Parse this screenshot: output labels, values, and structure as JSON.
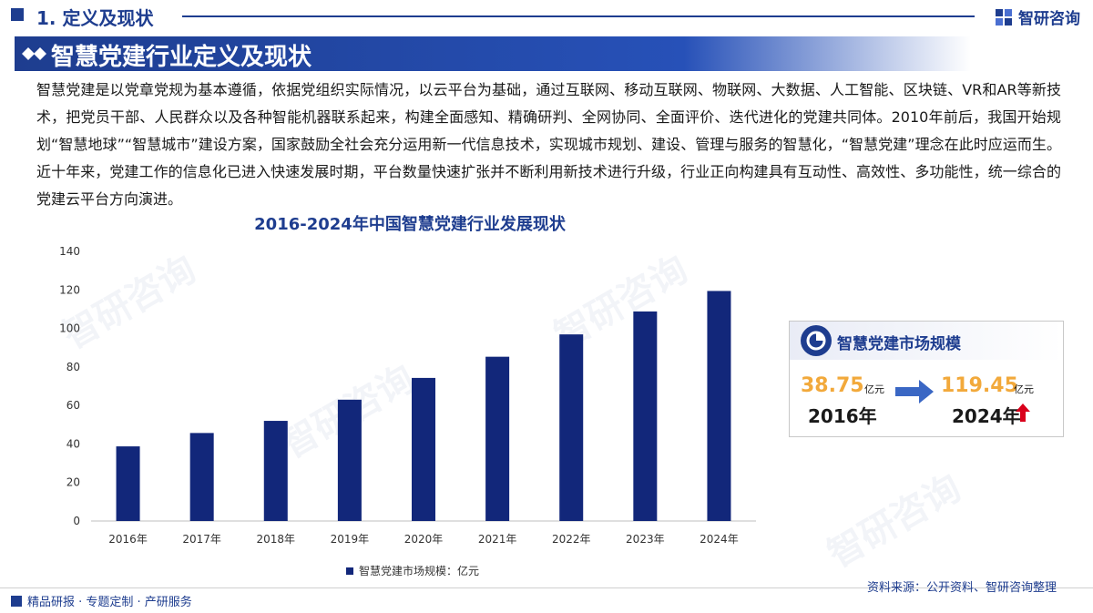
{
  "header": {
    "section_title": "1. 定义及现状",
    "logo_text": "智研咨询",
    "page_title": "智慧党建行业定义及现状"
  },
  "intro": {
    "text": "智慧党建是以党章党规为基本遵循，依据党组织实际情况，以云平台为基础，通过互联网、移动互联网、物联网、大数据、人工智能、区块链、VR和AR等新技术，把党员干部、人民群众以及各种智能机器联系起来，构建全面感知、精确研判、全网协同、全面评价、迭代进化的党建共同体。2010年前后，我国开始规划“智慧地球”“智慧城市”建设方案，国家鼓励全社会充分运用新一代信息技术，实现城市规划、建设、管理与服务的智慧化，“智慧党建”理念在此时应运而生。近十年来，党建工作的信息化已进入快速发展时期，平台数量快速扩张并不断利用新技术进行升级，行业正向构建具有互动性、高效性、多功能性，统一综合的党建云平台方向演进。"
  },
  "chart_data": {
    "type": "bar",
    "title": "2016-2024年中国智慧党建行业发展现状",
    "categories": [
      "2016年",
      "2017年",
      "2018年",
      "2019年",
      "2020年",
      "2021年",
      "2022年",
      "2023年",
      "2024年"
    ],
    "series": [
      {
        "name": "智慧党建市场规模：亿元",
        "values": [
          38.75,
          45.7,
          52,
          63,
          74.3,
          85.3,
          96.9,
          108.8,
          119.45
        ]
      }
    ],
    "ylim": [
      0,
      140
    ],
    "yticks": [
      0,
      20,
      40,
      60,
      80,
      100,
      120,
      140
    ],
    "grid": false,
    "legend": "bottom",
    "bar_color": "#12277a"
  },
  "card": {
    "title": "智慧党建市场规模",
    "start_value": "38.75",
    "start_unit": "亿元",
    "start_year": "2016年",
    "end_value": "119.45",
    "end_unit": "亿元",
    "end_year": "2024年"
  },
  "footer": {
    "tagline": "精品研报 · 专题定制 · 产研服务",
    "source": "资料来源：公开资料、智研咨询整理"
  },
  "colors": {
    "brand": "#1e3d8f",
    "bar": "#12277a",
    "highlight": "#f2a93b",
    "up_arrow": "#d9001b"
  },
  "icons": [
    "logo-icon",
    "pie-chart-icon",
    "arrow-right-icon",
    "arrow-up-icon"
  ]
}
